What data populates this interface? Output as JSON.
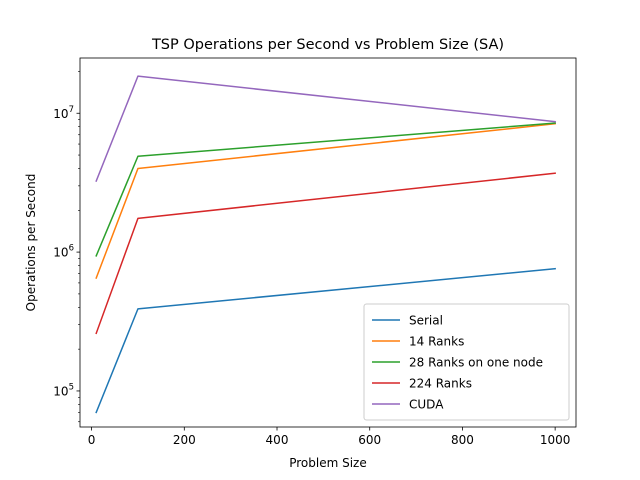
{
  "chart_data": {
    "type": "line",
    "title": "TSP Operations per Second vs Problem Size (SA)",
    "xlabel": "Problem Size",
    "ylabel": "Operations per Second",
    "x": [
      10,
      100,
      1000
    ],
    "xlim": [
      -25,
      1045
    ],
    "xticks": [
      0,
      200,
      400,
      600,
      800,
      1000
    ],
    "yscale": "log",
    "ylim": [
      55000,
      25000000
    ],
    "yticks": [
      100000,
      1000000,
      10000000
    ],
    "ytick_labels": [
      {
        "base": "10",
        "exp": "5"
      },
      {
        "base": "10",
        "exp": "6"
      },
      {
        "base": "10",
        "exp": "7"
      }
    ],
    "legend_position": "lower right",
    "series": [
      {
        "name": "Serial",
        "color": "#1f77b4",
        "values": [
          70000,
          390000,
          760000
        ]
      },
      {
        "name": "14 Ranks",
        "color": "#ff7f0e",
        "values": [
          650000,
          4000000,
          8400000
        ]
      },
      {
        "name": "28 Ranks on one node",
        "color": "#2ca02c",
        "values": [
          940000,
          4900000,
          8500000
        ]
      },
      {
        "name": "224 Ranks",
        "color": "#d62728",
        "values": [
          260000,
          1750000,
          3700000
        ]
      },
      {
        "name": "CUDA",
        "color": "#9467bd",
        "values": [
          3250000,
          18500000,
          8700000
        ]
      }
    ]
  }
}
